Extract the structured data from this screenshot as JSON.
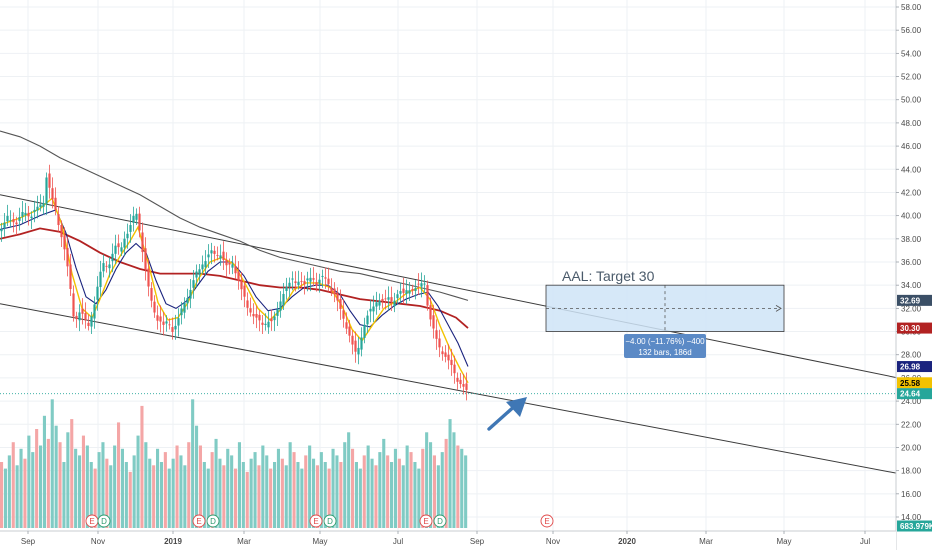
{
  "chart_data": {
    "type": "candlestick",
    "title": "",
    "annotation": "AAL: Target 30",
    "price_axis": {
      "ticks": [
        "58.00",
        "56.00",
        "54.00",
        "52.00",
        "50.00",
        "48.00",
        "46.00",
        "44.00",
        "42.00",
        "40.00",
        "38.00",
        "36.00",
        "34.00",
        "32.00",
        "30.00",
        "28.00",
        "26.00",
        "24.00",
        "22.00",
        "20.00",
        "18.00",
        "16.00",
        "14.00"
      ],
      "ylim": [
        13,
        59
      ],
      "grid": true
    },
    "time_axis": {
      "labels": [
        "Sep",
        "Nov",
        "2019",
        "Mar",
        "May",
        "Jul",
        "Sep",
        "Nov",
        "2020",
        "Mar",
        "May",
        "Jul"
      ],
      "bold_labels": [
        "2019",
        "2020"
      ]
    },
    "price_tags": [
      {
        "label": "32.69",
        "value": 32.69,
        "color": "#3b4f66"
      },
      {
        "label": "30.30",
        "value": 30.3,
        "color": "#b22222"
      },
      {
        "label": "26.98",
        "value": 26.98,
        "color": "#1a237e"
      },
      {
        "label": "25.58",
        "value": 25.58,
        "color": "#f2c200"
      },
      {
        "label": "24.64",
        "value": 24.64,
        "color": "#26a69a"
      },
      {
        "label": "683.979K",
        "value": 683979,
        "color": "#26a69a"
      }
    ],
    "current_price": 24.64,
    "channel": {
      "upper": [
        [
          0,
          41.8
        ],
        [
          932,
          25.4
        ]
      ],
      "lower": [
        [
          0,
          32.4
        ],
        [
          932,
          17.2
        ]
      ]
    },
    "measure_box": {
      "price_top": 34.0,
      "price_bottom": 30.0,
      "line1": "−4.00 (−11.76%) −400",
      "line2": "132 bars, 186d"
    },
    "price_path": [
      [
        0,
        38.5
      ],
      [
        8,
        40.0
      ],
      [
        16,
        39.2
      ],
      [
        24,
        40.5
      ],
      [
        30,
        39.8
      ],
      [
        38,
        40.8
      ],
      [
        44,
        41.2
      ],
      [
        47,
        43.8
      ],
      [
        50,
        42.0
      ],
      [
        54,
        41.0
      ],
      [
        58,
        39.5
      ],
      [
        62,
        38.0
      ],
      [
        66,
        36.5
      ],
      [
        70,
        34.0
      ],
      [
        73,
        31.5
      ],
      [
        76,
        31.0
      ],
      [
        80,
        31.8
      ],
      [
        84,
        31.2
      ],
      [
        88,
        30.4
      ],
      [
        92,
        31.5
      ],
      [
        96,
        33.0
      ],
      [
        100,
        35.0
      ],
      [
        104,
        36.0
      ],
      [
        108,
        35.5
      ],
      [
        112,
        36.5
      ],
      [
        116,
        37.5
      ],
      [
        120,
        37.0
      ],
      [
        124,
        38.0
      ],
      [
        128,
        38.5
      ],
      [
        132,
        39.5
      ],
      [
        136,
        40.5
      ],
      [
        140,
        38.5
      ],
      [
        144,
        36.0
      ],
      [
        148,
        34.0
      ],
      [
        152,
        32.5
      ],
      [
        156,
        31.2
      ],
      [
        160,
        30.8
      ],
      [
        164,
        30.5
      ],
      [
        168,
        31.0
      ],
      [
        172,
        30.0
      ],
      [
        176,
        30.5
      ],
      [
        180,
        31.5
      ],
      [
        184,
        32.5
      ],
      [
        188,
        33.0
      ],
      [
        192,
        34.0
      ],
      [
        196,
        35.0
      ],
      [
        200,
        35.5
      ],
      [
        204,
        36.0
      ],
      [
        208,
        36.5
      ],
      [
        212,
        37.0
      ],
      [
        216,
        36.5
      ],
      [
        220,
        36.8
      ],
      [
        224,
        36.0
      ],
      [
        228,
        35.5
      ],
      [
        232,
        36.0
      ],
      [
        236,
        35.0
      ],
      [
        240,
        34.0
      ],
      [
        244,
        33.0
      ],
      [
        248,
        32.0
      ],
      [
        252,
        31.5
      ],
      [
        256,
        31.2
      ],
      [
        260,
        30.8
      ],
      [
        264,
        30.5
      ],
      [
        268,
        31.0
      ],
      [
        272,
        30.8
      ],
      [
        276,
        31.5
      ],
      [
        280,
        32.5
      ],
      [
        284,
        33.5
      ],
      [
        288,
        34.0
      ],
      [
        292,
        34.5
      ],
      [
        296,
        34.2
      ],
      [
        300,
        34.5
      ],
      [
        304,
        34.0
      ],
      [
        308,
        34.5
      ],
      [
        312,
        34.8
      ],
      [
        316,
        34.0
      ],
      [
        320,
        34.5
      ],
      [
        324,
        34.8
      ],
      [
        328,
        34.2
      ],
      [
        332,
        33.5
      ],
      [
        336,
        33.0
      ],
      [
        340,
        32.0
      ],
      [
        344,
        31.0
      ],
      [
        348,
        30.0
      ],
      [
        352,
        29.0
      ],
      [
        356,
        28.0
      ],
      [
        360,
        29.0
      ],
      [
        364,
        30.5
      ],
      [
        368,
        31.5
      ],
      [
        372,
        32.0
      ],
      [
        376,
        32.5
      ],
      [
        380,
        32.8
      ],
      [
        384,
        32.5
      ],
      [
        388,
        33.0
      ],
      [
        392,
        32.5
      ],
      [
        396,
        33.0
      ],
      [
        400,
        33.5
      ],
      [
        404,
        33.2
      ],
      [
        408,
        33.8
      ],
      [
        412,
        33.5
      ],
      [
        416,
        33.8
      ],
      [
        420,
        34.0
      ],
      [
        424,
        34.5
      ],
      [
        428,
        32.0
      ],
      [
        432,
        30.5
      ],
      [
        436,
        29.5
      ],
      [
        440,
        28.5
      ],
      [
        444,
        28.0
      ],
      [
        448,
        27.5
      ],
      [
        452,
        27.0
      ],
      [
        456,
        26.0
      ],
      [
        460,
        25.5
      ],
      [
        464,
        25.2
      ],
      [
        468,
        24.64
      ]
    ],
    "ma_yellow": [
      [
        0,
        39.2
      ],
      [
        20,
        39.8
      ],
      [
        40,
        40.6
      ],
      [
        52,
        41.5
      ],
      [
        62,
        39.2
      ],
      [
        72,
        35.0
      ],
      [
        82,
        32.0
      ],
      [
        92,
        31.2
      ],
      [
        100,
        32.8
      ],
      [
        110,
        35.0
      ],
      [
        120,
        36.5
      ],
      [
        130,
        37.8
      ],
      [
        138,
        39.0
      ],
      [
        148,
        36.0
      ],
      [
        158,
        32.5
      ],
      [
        168,
        31.0
      ],
      [
        178,
        31.2
      ],
      [
        188,
        32.5
      ],
      [
        198,
        34.5
      ],
      [
        210,
        36.0
      ],
      [
        222,
        36.4
      ],
      [
        234,
        35.8
      ],
      [
        246,
        34.0
      ],
      [
        258,
        32.0
      ],
      [
        270,
        31.0
      ],
      [
        282,
        32.0
      ],
      [
        294,
        33.6
      ],
      [
        306,
        34.2
      ],
      [
        318,
        34.2
      ],
      [
        330,
        33.8
      ],
      [
        342,
        32.2
      ],
      [
        352,
        30.2
      ],
      [
        362,
        29.2
      ],
      [
        372,
        30.5
      ],
      [
        384,
        32.0
      ],
      [
        396,
        32.6
      ],
      [
        408,
        33.4
      ],
      [
        420,
        33.8
      ],
      [
        430,
        32.8
      ],
      [
        440,
        30.5
      ],
      [
        450,
        28.5
      ],
      [
        460,
        26.8
      ],
      [
        468,
        25.58
      ]
    ],
    "ma_blue": [
      [
        0,
        38.8
      ],
      [
        20,
        39.2
      ],
      [
        40,
        40.0
      ],
      [
        56,
        40.5
      ],
      [
        66,
        38.5
      ],
      [
        76,
        35.5
      ],
      [
        86,
        33.0
      ],
      [
        96,
        32.4
      ],
      [
        106,
        33.6
      ],
      [
        116,
        35.4
      ],
      [
        126,
        36.8
      ],
      [
        136,
        37.6
      ],
      [
        146,
        36.8
      ],
      [
        156,
        34.4
      ],
      [
        166,
        32.4
      ],
      [
        176,
        32.0
      ],
      [
        186,
        32.6
      ],
      [
        196,
        33.8
      ],
      [
        208,
        35.2
      ],
      [
        220,
        36.0
      ],
      [
        232,
        36.0
      ],
      [
        244,
        34.8
      ],
      [
        256,
        33.0
      ],
      [
        268,
        31.8
      ],
      [
        280,
        32.0
      ],
      [
        292,
        33.0
      ],
      [
        304,
        33.8
      ],
      [
        316,
        34.0
      ],
      [
        328,
        34.0
      ],
      [
        340,
        33.2
      ],
      [
        350,
        31.8
      ],
      [
        360,
        30.6
      ],
      [
        370,
        30.4
      ],
      [
        382,
        31.4
      ],
      [
        394,
        32.2
      ],
      [
        406,
        32.8
      ],
      [
        418,
        33.2
      ],
      [
        428,
        33.4
      ],
      [
        438,
        32.2
      ],
      [
        448,
        30.6
      ],
      [
        458,
        29.0
      ],
      [
        468,
        26.98
      ]
    ],
    "ma_red": [
      [
        0,
        38.0
      ],
      [
        20,
        38.4
      ],
      [
        40,
        38.9
      ],
      [
        60,
        38.6
      ],
      [
        80,
        37.8
      ],
      [
        100,
        36.8
      ],
      [
        120,
        36.0
      ],
      [
        140,
        35.4
      ],
      [
        160,
        35.0
      ],
      [
        180,
        35.0
      ],
      [
        200,
        35.0
      ],
      [
        220,
        34.8
      ],
      [
        240,
        34.4
      ],
      [
        260,
        34.0
      ],
      [
        280,
        33.8
      ],
      [
        300,
        33.8
      ],
      [
        320,
        33.6
      ],
      [
        340,
        33.2
      ],
      [
        360,
        32.8
      ],
      [
        380,
        32.6
      ],
      [
        400,
        32.4
      ],
      [
        420,
        32.2
      ],
      [
        440,
        31.8
      ],
      [
        456,
        31.2
      ],
      [
        468,
        30.3
      ]
    ],
    "ma_dark": [
      [
        0,
        47.3
      ],
      [
        20,
        46.8
      ],
      [
        40,
        46.0
      ],
      [
        60,
        45.0
      ],
      [
        80,
        44.2
      ],
      [
        100,
        43.4
      ],
      [
        120,
        42.6
      ],
      [
        140,
        41.8
      ],
      [
        160,
        40.8
      ],
      [
        180,
        39.8
      ],
      [
        200,
        39.0
      ],
      [
        220,
        38.4
      ],
      [
        240,
        37.8
      ],
      [
        260,
        37.0
      ],
      [
        280,
        36.4
      ],
      [
        300,
        36.0
      ],
      [
        320,
        35.6
      ],
      [
        340,
        35.2
      ],
      [
        360,
        35.0
      ],
      [
        380,
        34.6
      ],
      [
        400,
        34.2
      ],
      [
        420,
        33.8
      ],
      [
        440,
        33.4
      ],
      [
        456,
        33.0
      ],
      [
        468,
        32.69
      ]
    ],
    "volume": {
      "scale": [
        0,
        4000000
      ],
      "values": [
        2.0,
        1.8,
        2.2,
        2.6,
        1.9,
        2.4,
        2.1,
        2.8,
        2.3,
        3.0,
        2.5,
        3.4,
        2.7,
        3.9,
        3.1,
        2.6,
        2.0,
        2.9,
        3.3,
        2.4,
        2.2,
        2.8,
        2.5,
        2.0,
        1.8,
        2.3,
        2.6,
        2.1,
        1.9,
        2.5,
        3.2,
        2.4,
        2.0,
        1.7,
        2.2,
        2.8,
        3.7,
        2.6,
        2.1,
        1.9,
        2.4,
        2.0,
        2.3,
        1.8,
        2.1,
        2.5,
        2.2,
        1.9,
        2.6,
        3.9,
        3.1,
        2.5,
        2.0,
        1.8,
        2.3,
        2.7,
        2.1,
        1.9,
        2.4,
        2.2,
        1.8,
        2.6,
        2.0,
        1.7,
        2.1,
        2.3,
        1.9,
        2.5,
        2.2,
        1.8,
        2.0,
        2.4,
        2.1,
        1.9,
        2.6,
        2.3,
        2.0,
        1.8,
        2.2,
        2.5,
        2.1,
        1.9,
        2.3,
        2.0,
        1.8,
        2.4,
        2.2,
        2.0,
        2.6,
        2.9,
        2.4,
        2.0,
        1.8,
        2.2,
        2.5,
        2.1,
        1.9,
        2.3,
        2.7,
        2.2,
        2.0,
        2.4,
        2.1,
        1.9,
        2.5,
        2.3,
        2.0,
        1.8,
        2.4,
        2.9,
        2.6,
        2.2,
        1.9,
        2.3,
        2.7,
        3.3,
        2.9,
        2.5,
        2.4,
        2.2
      ]
    },
    "earnings_markers": [
      "E",
      "D",
      "E",
      "D",
      "E",
      "D",
      "E",
      "D",
      "E"
    ]
  },
  "colors": {
    "up": "#26a69a",
    "down": "#ef5350",
    "volume_up": "#80cbc4",
    "volume_down": "#f4a6a6",
    "grid": "#eef1f4",
    "channel": "#3b3b3b",
    "ma_yellow": "#f2c200",
    "ma_blue": "#1a237e",
    "ma_red": "#b22222",
    "ma_dark": "#555555",
    "measure_fill": "#cfe4f7",
    "measure_stroke": "#3a3a3a",
    "measure_label": "#5b8ac6",
    "arrow": "#3f77b5"
  }
}
